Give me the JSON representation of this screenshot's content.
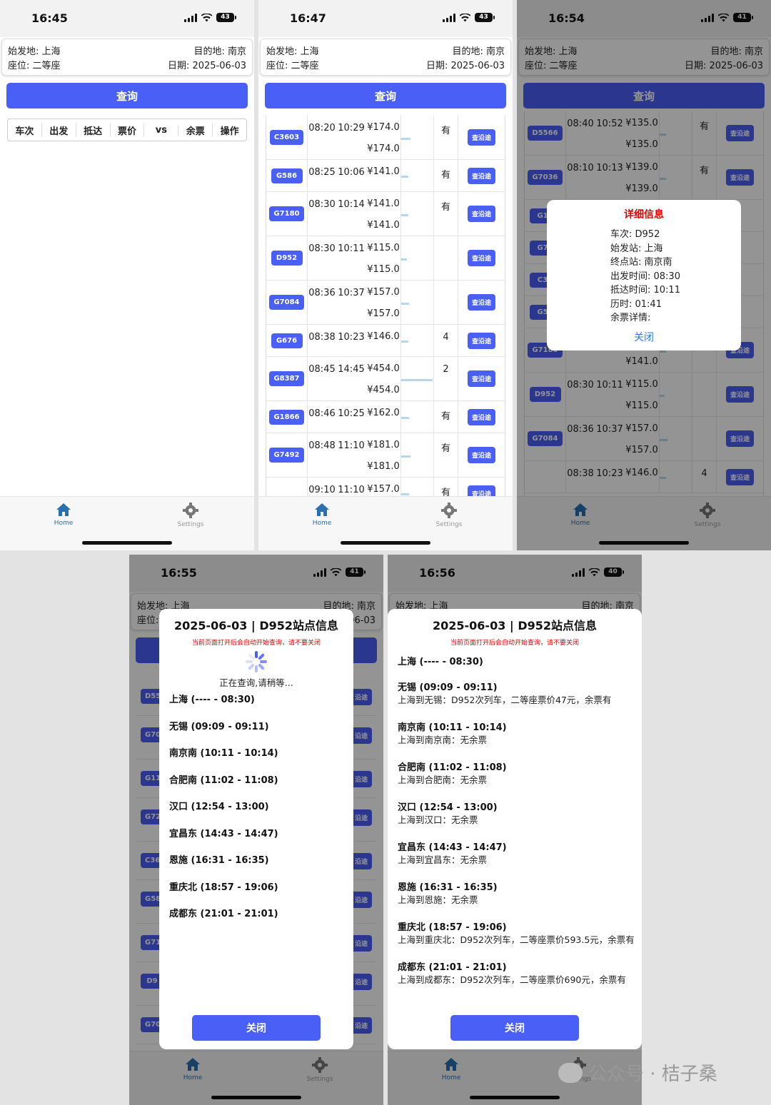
{
  "colors": {
    "primary": "#4a5ff5",
    "danger": "#dd0000",
    "link": "#2f7de1"
  },
  "search": {
    "from": "始发地: 上海",
    "to": "目的地: 南京",
    "seat": "座位: 二等座",
    "date": "日期: 2025-06-03",
    "query_label": "查询"
  },
  "table_headers": [
    "车次",
    "出发",
    "抵达",
    "票价",
    "vs",
    "余票",
    "操作"
  ],
  "tabs": {
    "home": "Home",
    "settings": "Settings"
  },
  "screens": [
    {
      "time": "16:45",
      "battery": "43"
    },
    {
      "time": "16:47",
      "battery": "43"
    },
    {
      "time": "16:54",
      "battery": "41"
    },
    {
      "time": "16:55",
      "battery": "41"
    },
    {
      "time": "16:56",
      "battery": "40"
    }
  ],
  "trains_s2": [
    {
      "no": "C3603",
      "dep": "08:20",
      "arr": "10:29",
      "p1": "¥174.0",
      "p2": "¥174.0",
      "rem": "有",
      "bar": 0.3
    },
    {
      "no": "G586",
      "dep": "08:25",
      "arr": "10:06",
      "p1": "¥141.0",
      "p2": "",
      "rem": "有",
      "bar": 0.22
    },
    {
      "no": "G7180",
      "dep": "08:30",
      "arr": "10:14",
      "p1": "¥141.0",
      "p2": "¥141.0",
      "rem": "有",
      "bar": 0.22
    },
    {
      "no": "D952",
      "dep": "08:30",
      "arr": "10:11",
      "p1": "¥115.0",
      "p2": "¥115.0",
      "rem": "",
      "bar": 0.18
    },
    {
      "no": "G7084",
      "dep": "08:36",
      "arr": "10:37",
      "p1": "¥157.0",
      "p2": "¥157.0",
      "rem": "",
      "bar": 0.26
    },
    {
      "no": "G676",
      "dep": "08:38",
      "arr": "10:23",
      "p1": "¥146.0",
      "p2": "",
      "rem": "4",
      "bar": 0.22
    },
    {
      "no": "G8387",
      "dep": "08:45",
      "arr": "14:45",
      "p1": "¥454.0",
      "p2": "¥454.0",
      "rem": "2",
      "bar": 1.0
    },
    {
      "no": "G1866",
      "dep": "08:46",
      "arr": "10:25",
      "p1": "¥162.0",
      "p2": "",
      "rem": "有",
      "bar": 0.26
    },
    {
      "no": "G7492",
      "dep": "08:48",
      "arr": "11:10",
      "p1": "¥181.0",
      "p2": "¥181.0",
      "rem": "有",
      "bar": 0.3
    },
    {
      "no": "",
      "dep": "09:10",
      "arr": "11:10",
      "p1": "¥157.0",
      "p2": "",
      "rem": "有",
      "bar": 0.26
    }
  ],
  "trains_s3": [
    {
      "no": "D5566",
      "dep": "08:40",
      "arr": "10:52",
      "p1": "¥135.0",
      "p2": "¥135.0",
      "rem": "有",
      "bar": 0.2
    },
    {
      "no": "G7036",
      "dep": "08:10",
      "arr": "10:13",
      "p1": "¥139.0",
      "p2": "¥139.0",
      "rem": "有",
      "bar": 0.2
    },
    {
      "no": "G11",
      "dep": "",
      "arr": "",
      "p1": "",
      "p2": "",
      "rem": "",
      "bar": 0
    },
    {
      "no": "G72",
      "dep": "",
      "arr": "",
      "p1": "",
      "p2": "",
      "rem": "",
      "bar": 0
    },
    {
      "no": "C36",
      "dep": "",
      "arr": "",
      "p1": "",
      "p2": "",
      "rem": "",
      "bar": 0
    },
    {
      "no": "G58",
      "dep": "",
      "arr": "",
      "p1": "",
      "p2": "",
      "rem": "",
      "bar": 0
    },
    {
      "no": "G7180",
      "dep": "08:30",
      "arr": "10:14",
      "p1": "¥141.0",
      "p2": "¥141.0",
      "rem": "有",
      "bar": 0.2
    },
    {
      "no": "D952",
      "dep": "08:30",
      "arr": "10:11",
      "p1": "¥115.0",
      "p2": "¥115.0",
      "rem": "",
      "bar": 0.16
    },
    {
      "no": "G7084",
      "dep": "08:36",
      "arr": "10:37",
      "p1": "¥157.0",
      "p2": "¥157.0",
      "rem": "",
      "bar": 0.24
    },
    {
      "no": "",
      "dep": "08:38",
      "arr": "10:23",
      "p1": "¥146.0",
      "p2": "",
      "rem": "4",
      "bar": 0.2
    }
  ],
  "detail": {
    "title": "详细信息",
    "lines": [
      "车次: D952",
      "始发站: 上海",
      "终点站: 南京南",
      "出发时间: 08:30",
      "抵达时间: 10:11",
      "历时: 01:41",
      "余票详情:"
    ],
    "close": "关闭"
  },
  "stations_sheet": {
    "title": "2025-06-03 | D952站点信息",
    "warning": "当前页面打开后会自动开始查询，请不要关闭",
    "loading": "正在查询,请稍等...",
    "close": "关闭",
    "stations": [
      {
        "name": "上海 (---- - 08:30)",
        "detail": ""
      },
      {
        "name": "无锡 (09:09 - 09:11)",
        "detail": "上海到无锡：D952次列车，二等座票价47元，余票有"
      },
      {
        "name": "南京南 (10:11 - 10:14)",
        "detail": "上海到南京南：无余票"
      },
      {
        "name": "合肥南 (11:02 - 11:08)",
        "detail": "上海到合肥南：无余票"
      },
      {
        "name": "汉口 (12:54 - 13:00)",
        "detail": "上海到汉口：无余票"
      },
      {
        "name": "宜昌东 (14:43 - 14:47)",
        "detail": "上海到宜昌东：无余票"
      },
      {
        "name": "恩施 (16:31 - 16:35)",
        "detail": "上海到恩施：无余票"
      },
      {
        "name": "重庆北 (18:57 - 19:06)",
        "detail": "上海到重庆北：D952次列车，二等座票价593.5元，余票有"
      },
      {
        "name": "成都东 (21:01 - 21:01)",
        "detail": "上海到成都东：D952次列车，二等座票价690元，余票有"
      }
    ]
  },
  "bg_badges_s4": [
    "D55",
    "G70",
    "G11",
    "G72",
    "C36",
    "G58",
    "G71",
    "D9",
    "G70"
  ],
  "bg_buttons_label": "查沿途",
  "bg_buttons_partial": "沿途",
  "watermark": "公众号 · 桔子桑"
}
